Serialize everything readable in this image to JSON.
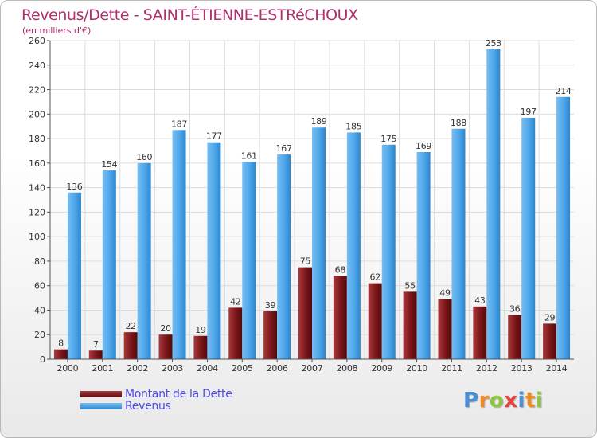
{
  "page": {
    "title": "Revenus/Dette - SAINT-ÉTIENNE-ESTRéCHOUX",
    "subtitle": "(en milliers d'€)"
  },
  "legend": {
    "items": [
      {
        "label": "Montant de la Dette",
        "color": "#7a1518"
      },
      {
        "label": "Revenus",
        "color": "#4da6ea"
      }
    ]
  },
  "logo": {
    "letters": [
      {
        "char": "P",
        "color": "#4a8ed4"
      },
      {
        "char": "r",
        "color": "#f08c1c"
      },
      {
        "char": "o",
        "color": "#8cc63f"
      },
      {
        "char": "x",
        "color": "#e8423f"
      },
      {
        "char": "i",
        "color": "#4a8ed4"
      },
      {
        "char": "t",
        "color": "#f08c1c"
      },
      {
        "char": "i",
        "color": "#8cc63f"
      }
    ]
  },
  "chart_data": {
    "type": "bar",
    "categories": [
      "2000",
      "2001",
      "2002",
      "2003",
      "2004",
      "2005",
      "2006",
      "2007",
      "2008",
      "2009",
      "2010",
      "2011",
      "2012",
      "2013",
      "2014"
    ],
    "series": [
      {
        "name": "Montant de la Dette",
        "color": "#7a1518",
        "values": [
          8,
          7,
          22,
          20,
          19,
          42,
          39,
          75,
          68,
          62,
          55,
          49,
          43,
          36,
          29
        ]
      },
      {
        "name": "Revenus",
        "color": "#4da6ea",
        "values": [
          136,
          154,
          160,
          187,
          177,
          161,
          167,
          189,
          185,
          175,
          169,
          188,
          253,
          197,
          214
        ]
      }
    ],
    "title": "Revenus/Dette - SAINT-ÉTIENNE-ESTRéCHOUX",
    "ylabel": "(en milliers d'€)",
    "ylim": [
      0,
      260
    ],
    "yticks": [
      0,
      20,
      40,
      60,
      80,
      100,
      120,
      140,
      160,
      180,
      200,
      220,
      240,
      260
    ],
    "grid": true,
    "legend_position": "bottom-left"
  }
}
